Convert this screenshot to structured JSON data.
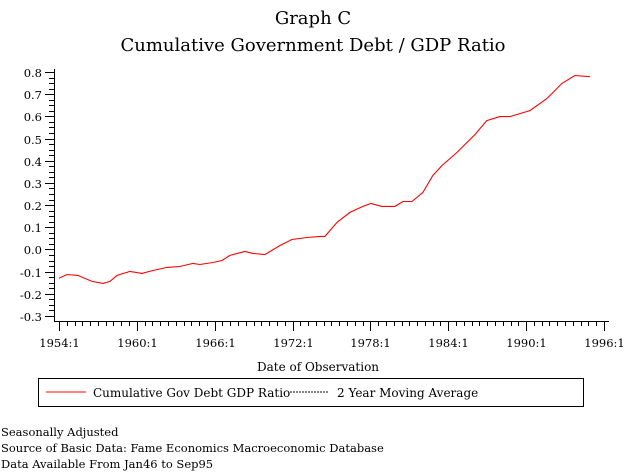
{
  "chart_data": {
    "type": "line",
    "title": "Graph C",
    "subtitle": "Cumulative Government Debt / GDP Ratio",
    "xlabel": "Date of Observation",
    "ylabel": "",
    "xlim": [
      1954,
      1996
    ],
    "ylim": [
      -0.3,
      0.8
    ],
    "x_ticks": [
      {
        "value": 1954,
        "label": "1954:1"
      },
      {
        "value": 1960,
        "label": "1960:1"
      },
      {
        "value": 1966,
        "label": "1966:1"
      },
      {
        "value": 1972,
        "label": "1972:1"
      },
      {
        "value": 1978,
        "label": "1978:1"
      },
      {
        "value": 1984,
        "label": "1984:1"
      },
      {
        "value": 1990,
        "label": "1990:1"
      },
      {
        "value": 1996,
        "label": "1996:1"
      }
    ],
    "y_ticks": [
      {
        "value": 0.8,
        "label": "0.8"
      },
      {
        "value": 0.7,
        "label": "0.7"
      },
      {
        "value": 0.6,
        "label": "0.6"
      },
      {
        "value": 0.5,
        "label": "0.5"
      },
      {
        "value": 0.4,
        "label": "0.4"
      },
      {
        "value": 0.3,
        "label": "0.3"
      },
      {
        "value": 0.2,
        "label": "0.2"
      },
      {
        "value": 0.1,
        "label": "0.1"
      },
      {
        "value": 0.0,
        "label": "0.0"
      },
      {
        "value": -0.1,
        "label": "-0.1"
      },
      {
        "value": -0.2,
        "label": "-0.2"
      },
      {
        "value": -0.3,
        "label": "-0.3"
      }
    ],
    "grid": false,
    "legend_position": "bottom",
    "series": [
      {
        "name": "Cumulative Gov Debt GDP Ratio",
        "color": "#ff0000",
        "style": "solid",
        "x": [
          1954.0,
          1954.62,
          1955.46,
          1956.54,
          1957.39,
          1957.93,
          1958.47,
          1959.47,
          1960.39,
          1961.24,
          1962.32,
          1963.32,
          1964.32,
          1964.86,
          1965.86,
          1966.56,
          1967.17,
          1968.33,
          1968.95,
          1969.87,
          1971.03,
          1971.95,
          1973.11,
          1974.11,
          1974.49,
          1975.42,
          1976.42,
          1977.42,
          1978.04,
          1978.88,
          1979.89,
          1980.5,
          1981.2,
          1982.04,
          1982.81,
          1983.51,
          1984.66,
          1986.05,
          1986.97,
          1987.98,
          1988.75,
          1990.29,
          1991.6,
          1992.75,
          1993.75,
          1994.91
        ],
        "y": [
          -0.13,
          -0.113,
          -0.117,
          -0.144,
          -0.153,
          -0.144,
          -0.117,
          -0.099,
          -0.108,
          -0.095,
          -0.081,
          -0.077,
          -0.063,
          -0.068,
          -0.059,
          -0.05,
          -0.027,
          -0.009,
          -0.018,
          -0.023,
          0.018,
          0.045,
          0.054,
          0.059,
          0.059,
          0.122,
          0.167,
          0.194,
          0.207,
          0.194,
          0.194,
          0.216,
          0.216,
          0.257,
          0.333,
          0.378,
          0.437,
          0.518,
          0.581,
          0.599,
          0.599,
          0.626,
          0.68,
          0.748,
          0.784,
          0.779
        ]
      },
      {
        "name": "2 Year Moving Average",
        "color": "#000000",
        "style": "dashed",
        "x": [],
        "y": []
      }
    ]
  },
  "notes": [
    "Seasonally Adjusted",
    "Source of Basic Data: Fame Economics Macroeconomic Database",
    "Data Available From Jan46 to Sep95"
  ]
}
